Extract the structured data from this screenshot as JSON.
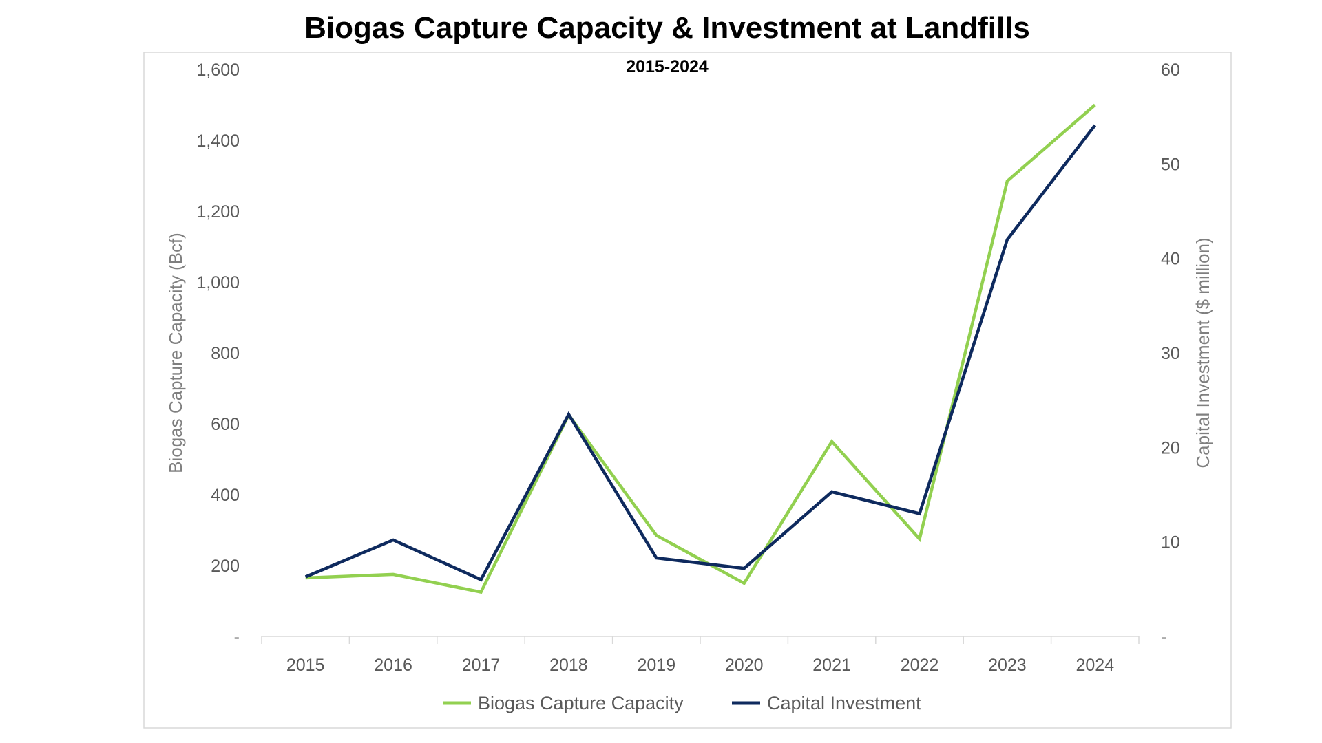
{
  "chart_data": {
    "type": "line",
    "title": "Biogas Capture Capacity & Investment at Landfills",
    "subtitle": "2015-2024",
    "categories": [
      "2015",
      "2016",
      "2017",
      "2018",
      "2019",
      "2020",
      "2021",
      "2022",
      "2023",
      "2024"
    ],
    "series": [
      {
        "name": "Biogas Capture Capacity",
        "axis": "left",
        "color": "#92d050",
        "values": [
          165,
          175,
          125,
          625,
          285,
          150,
          550,
          275,
          1285,
          1500
        ]
      },
      {
        "name": "Capital Investment",
        "axis": "right",
        "color": "#0e2a5e",
        "values": [
          6.3,
          10.2,
          6.0,
          23.5,
          8.3,
          7.2,
          15.3,
          13.0,
          42.0,
          54.1
        ]
      }
    ],
    "ylabel": "Biogas Capture Capacity (Bcf)",
    "y2label": "Capital Investment ($ million)",
    "ylim": [
      0,
      1600
    ],
    "y2lim": [
      0,
      60
    ],
    "yticks": [
      "-",
      "200",
      "400",
      "600",
      "800",
      "1,000",
      "1,200",
      "1,400",
      "1,600"
    ],
    "y2ticks": [
      "-",
      "10",
      "20",
      "30",
      "40",
      "50",
      "60"
    ],
    "grid": false,
    "legend": "bottom"
  }
}
